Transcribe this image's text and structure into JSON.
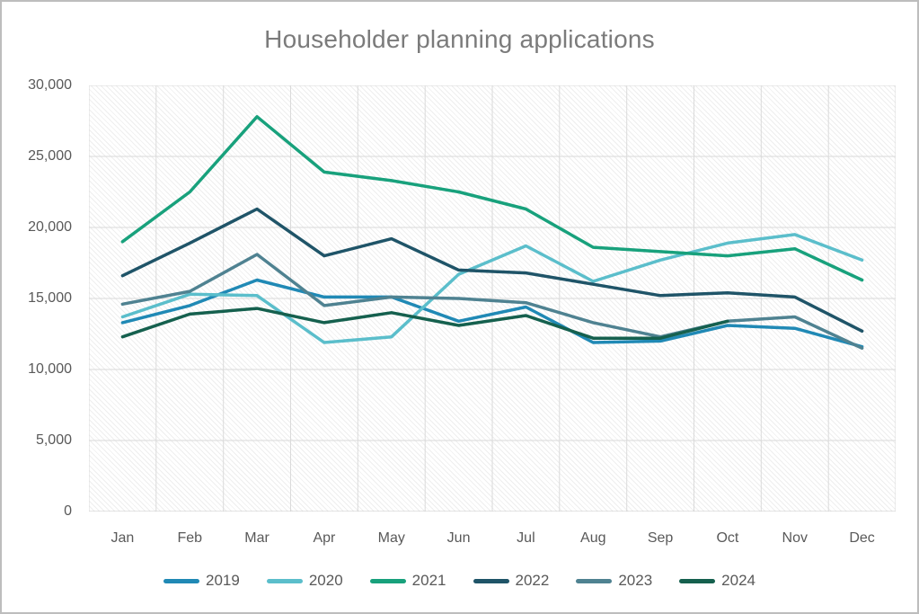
{
  "title": "Householder planning applications",
  "chart_data": {
    "type": "line",
    "title": "Householder planning applications",
    "xlabel": "",
    "ylabel": "",
    "ylim": [
      0,
      30000
    ],
    "y_tick_step": 5000,
    "y_ticks": [
      "30,000",
      "25,000",
      "20,000",
      "15,000",
      "10,000",
      "5,000",
      "0"
    ],
    "grid": true,
    "legend_position": "bottom",
    "categories": [
      "Jan",
      "Feb",
      "Mar",
      "Apr",
      "May",
      "Jun",
      "Jul",
      "Aug",
      "Sep",
      "Oct",
      "Nov",
      "Dec"
    ],
    "series": [
      {
        "name": "2019",
        "color": "#2089B5",
        "values": [
          13300,
          14500,
          16300,
          15100,
          15100,
          13400,
          14400,
          11900,
          12000,
          13100,
          12900,
          11600
        ]
      },
      {
        "name": "2020",
        "color": "#5BBECB",
        "values": [
          13700,
          15300,
          15200,
          11900,
          12300,
          16700,
          18700,
          16200,
          17700,
          18900,
          19500,
          17700
        ]
      },
      {
        "name": "2021",
        "color": "#18A17C",
        "values": [
          19000,
          22500,
          27800,
          23900,
          23300,
          22500,
          21300,
          18600,
          18300,
          18000,
          18500,
          16300
        ]
      },
      {
        "name": "2022",
        "color": "#1F5468",
        "values": [
          16600,
          18900,
          21300,
          18000,
          19200,
          17000,
          16800,
          16000,
          15200,
          15400,
          15100,
          12700
        ]
      },
      {
        "name": "2023",
        "color": "#4F8291",
        "values": [
          14600,
          15500,
          18100,
          14500,
          15100,
          15000,
          14700,
          13300,
          12300,
          13400,
          13700,
          11500
        ]
      },
      {
        "name": "2024",
        "color": "#15604E",
        "values": [
          12300,
          13900,
          14300,
          13300,
          14000,
          13100,
          13800,
          12200,
          12200,
          13400,
          null,
          null
        ]
      }
    ],
    "colors": {
      "grid_line": "#DADADA",
      "axis_line": "#C9C9C9",
      "tick_text": "#595959",
      "title_text": "#7B7B7B"
    }
  }
}
